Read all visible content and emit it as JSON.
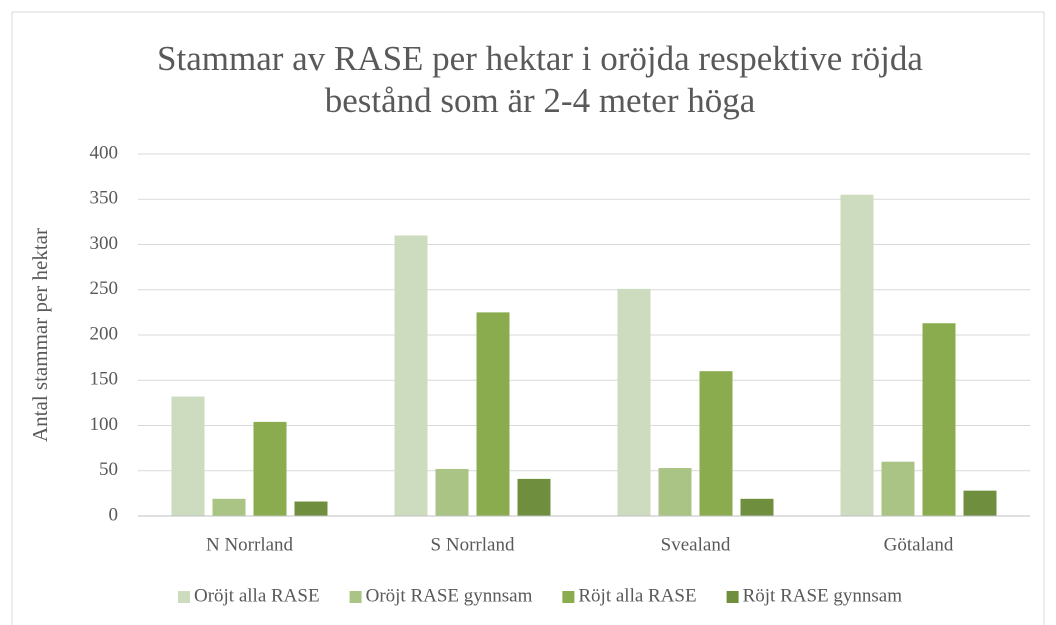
{
  "chart_data": {
    "type": "bar",
    "title": "Stammar av RASE per hektar i oröjda respektive röjda bestånd som är 2-4 meter höga",
    "y_label": "Antal stammar per hektar",
    "categories": [
      "N Norrland",
      "S Norrland",
      "Svealand",
      "Götaland"
    ],
    "series": [
      {
        "name": "Oröjt alla RASE",
        "color": "#cddbbf",
        "values": [
          132,
          310,
          251,
          355
        ]
      },
      {
        "name": "Oröjt RASE gynnsam",
        "color": "#a9c484",
        "values": [
          19,
          52,
          53,
          60
        ]
      },
      {
        "name": "Röjt alla RASE",
        "color": "#8aac4e",
        "values": [
          104,
          225,
          160,
          213
        ]
      },
      {
        "name": "Röjt RASE gynnsam",
        "color": "#6f8f3e",
        "values": [
          16,
          41,
          19,
          28
        ]
      }
    ],
    "ylim": [
      0,
      400
    ],
    "yticks": [
      0,
      50,
      100,
      150,
      200,
      250,
      300,
      350,
      400
    ],
    "grid": true,
    "legend": "bottom"
  }
}
